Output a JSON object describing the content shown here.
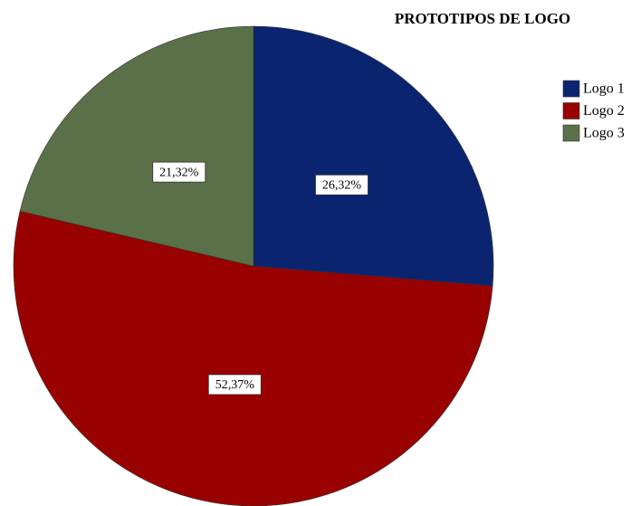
{
  "chart_data": {
    "type": "pie",
    "title": "PROTOTIPOS DE LOGO",
    "categories": [
      "Logo 1",
      "Logo 2",
      "Logo 3"
    ],
    "values": [
      26.32,
      52.37,
      21.32
    ],
    "value_labels": [
      "26,32%",
      "52,37%",
      "21,32%"
    ],
    "colors": [
      "#0b2470",
      "#990000",
      "#5a7048"
    ],
    "legend": "top-right"
  }
}
